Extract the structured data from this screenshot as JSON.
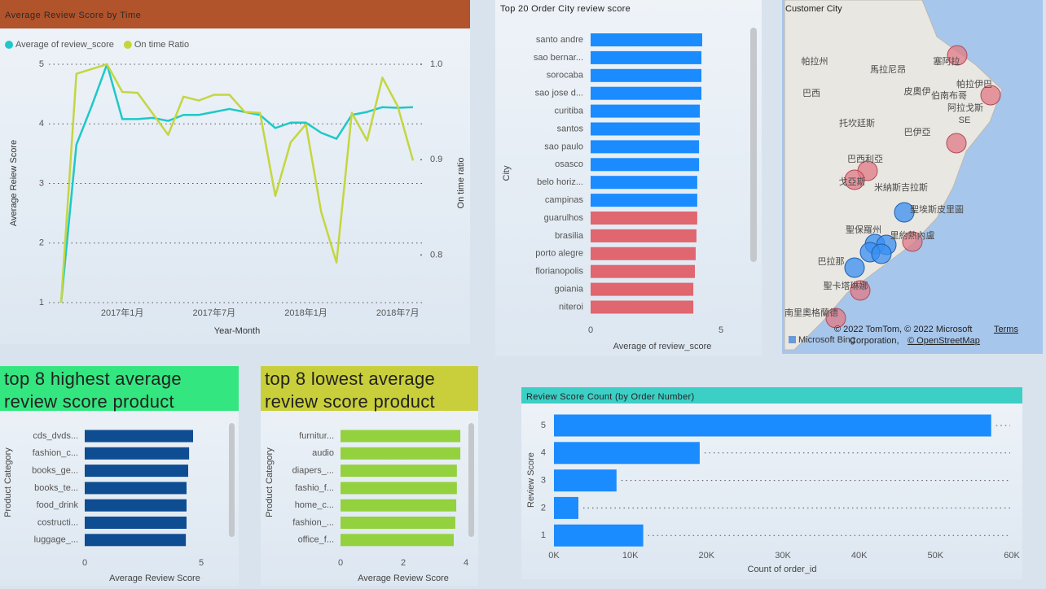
{
  "chart_data": [
    {
      "type": "line",
      "title": "Average Review Score by Time",
      "x_label": "Year-Month",
      "y_label": "Average Reiew Score",
      "y2_label": "On time ratio",
      "categories": [
        null,
        null,
        null,
        null,
        "2017年1月",
        null,
        null,
        null,
        null,
        null,
        "2017年7月",
        null,
        null,
        null,
        null,
        null,
        "2018年1月",
        null,
        null,
        null,
        null,
        null,
        "2018年7月",
        null
      ],
      "series": [
        {
          "name": "Average of review_score",
          "color": "#1fc8c8",
          "values": [
            1,
            3.65,
            4.3,
            5.0,
            4.08,
            4.08,
            4.1,
            4.05,
            4.15,
            4.15,
            4.2,
            4.25,
            4.2,
            4.15,
            3.93,
            4.02,
            4.02,
            3.85,
            3.75,
            4.15,
            4.2,
            4.28,
            4.27,
            4.28
          ]
        },
        {
          "name": "On time Ratio",
          "color": "#c4d63f",
          "axis": "y2",
          "values": [
            0.75,
            0.99,
            0.995,
            1.0,
            0.971,
            0.97,
            0.948,
            0.926,
            0.966,
            0.962,
            0.968,
            0.968,
            0.95,
            0.949,
            0.862,
            0.918,
            0.937,
            0.845,
            0.792,
            0.949,
            0.92,
            0.986,
            0.956,
            0.899
          ]
        }
      ],
      "ylim": [
        1,
        5
      ],
      "yticks": [
        1,
        2,
        3,
        4,
        5
      ],
      "y2lim": [
        0.75,
        1
      ],
      "y2ticks": [
        0.8,
        0.9,
        {
          "value": 1,
          "label": "1.0"
        }
      ],
      "grid": true,
      "legend": "top-left"
    },
    {
      "type": "bar",
      "orientation": "horizontal",
      "title": "Top 20 Order City review score",
      "x_label": "Average of review_score",
      "y_label": "City",
      "categories": [
        "santo andre",
        "sao bernar...",
        "sorocaba",
        "sao jose d...",
        "curitiba",
        "santos",
        "sao paulo",
        "osasco",
        "belo horiz...",
        "campinas",
        "guarulhos",
        "brasilia",
        "porto alegre",
        "florianopolis",
        "goiania",
        "niteroi"
      ],
      "values": [
        4.28,
        4.25,
        4.25,
        4.25,
        4.19,
        4.19,
        4.16,
        4.16,
        4.09,
        4.09,
        4.09,
        4.06,
        4.03,
        4.0,
        3.94,
        3.94
      ],
      "colors": [
        "#1a8cff",
        "#1a8cff",
        "#1a8cff",
        "#1a8cff",
        "#1a8cff",
        "#1a8cff",
        "#1a8cff",
        "#1a8cff",
        "#1a8cff",
        "#1a8cff",
        "#e0666f",
        "#e0666f",
        "#e0666f",
        "#e0666f",
        "#e0666f",
        "#e0666f"
      ],
      "xlim": [
        0,
        5.5
      ],
      "xticks": [
        0,
        5
      ]
    },
    {
      "type": "bar",
      "orientation": "horizontal",
      "title": "top 8 highest average review score product",
      "x_label": "Average Review Score",
      "y_label": "Product Category",
      "categories": [
        "cds_dvds...",
        "fashion_c...",
        "books_ge...",
        "books_te...",
        "food_drink",
        "costructi...",
        "luggage_..."
      ],
      "values": [
        4.65,
        4.48,
        4.44,
        4.37,
        4.37,
        4.37,
        4.34
      ],
      "color": "#0f4d92",
      "xlim": [
        0,
        6
      ],
      "xticks": [
        0,
        5
      ]
    },
    {
      "type": "bar",
      "orientation": "horizontal",
      "title": "top 8 lowest average review score product",
      "x_label": "Average Review Score",
      "y_label": "Product Category",
      "categories": [
        "furnitur...",
        "audio",
        "diapers_...",
        "fashio_f...",
        "home_c...",
        "fashion_...",
        "office_f..."
      ],
      "values": [
        3.82,
        3.82,
        3.71,
        3.71,
        3.69,
        3.66,
        3.61
      ],
      "color": "#94d13e",
      "xlim": [
        0,
        4.2
      ],
      "xticks": [
        0,
        2,
        4
      ]
    },
    {
      "type": "bar",
      "orientation": "horizontal",
      "title": "Review Score Count (by Order Number)",
      "x_label": "Count of order_id",
      "y_label": "Review Score",
      "categories": [
        "5",
        "4",
        "3",
        "2",
        "1"
      ],
      "values": [
        57300,
        19100,
        8200,
        3200,
        11700
      ],
      "color": "#1a8cff",
      "xlim": [
        0,
        60000
      ],
      "xticks": [
        {
          "value": 0,
          "label": "0K"
        },
        {
          "value": 10000,
          "label": "10K"
        },
        {
          "value": 20000,
          "label": "20K"
        },
        {
          "value": 30000,
          "label": "30K"
        },
        {
          "value": 40000,
          "label": "40K"
        },
        {
          "value": 50000,
          "label": "50K"
        },
        {
          "value": 60000,
          "label": "60K"
        }
      ],
      "leaders": true
    }
  ],
  "map": {
    "title": "Customer City",
    "labels": [
      "帕拉州",
      "馬拉尼昂",
      "塞阿拉",
      "巴西",
      "皮奧伊",
      "帕拉伊巴",
      "伯南布哥",
      "阿拉戈斯",
      "托坎廷斯",
      "SE",
      "巴伊亞",
      "巴西利亞",
      "戈亞斯",
      "米納斯吉拉斯",
      "聖埃斯皮里圖",
      "聖保羅州",
      "里約熱內盧",
      "巴拉那",
      "聖卡塔琳娜",
      "南里奧格蘭德"
    ],
    "attribution": [
      "© 2022 TomTom, © 2022 Microsoft",
      "Terms",
      "Corporation,",
      "© OpenStreetMap"
    ],
    "logo": "Microsoft Bing"
  }
}
